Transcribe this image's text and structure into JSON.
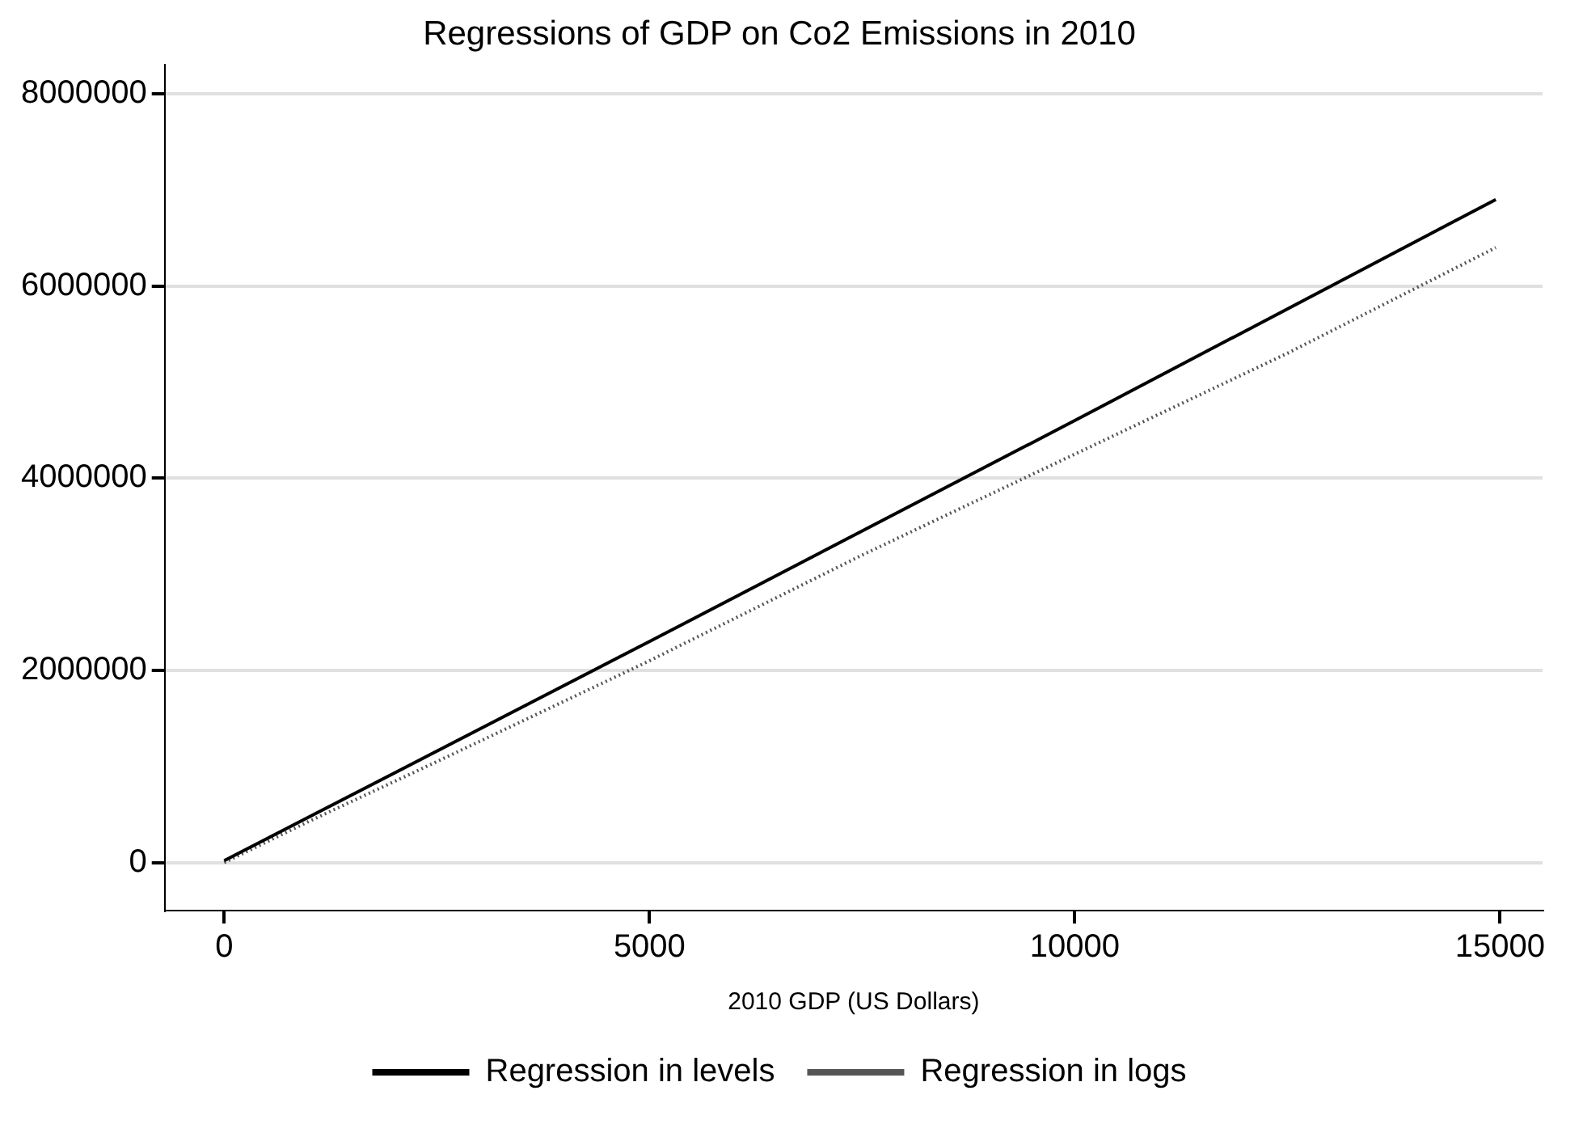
{
  "chart_data": {
    "type": "line",
    "title": "Regressions of GDP on Co2 Emissions in 2010",
    "xlabel": "2010 GDP (US Dollars)",
    "xlim": [
      -700,
      15500
    ],
    "xticks": [
      0,
      5000,
      10000,
      15000
    ],
    "ylim": [
      -500000,
      8300000
    ],
    "yticks": [
      0,
      2000000,
      4000000,
      6000000,
      8000000
    ],
    "grid": "y",
    "legend": "bottom",
    "marker": "none",
    "series": [
      {
        "name": "Regression in levels",
        "color": "#000000",
        "line_style": "solid",
        "x": [
          0,
          5000,
          10000,
          14950
        ],
        "values": [
          20000,
          2300000,
          4600000,
          6900000
        ]
      },
      {
        "name": "Regression in logs",
        "color": "#555555",
        "line_style": "dotted",
        "x": [
          0,
          1000,
          2500,
          5000,
          7500,
          10000,
          12500,
          14950
        ],
        "values": [
          0,
          430000,
          1050000,
          2100000,
          3200000,
          4250000,
          5300000,
          6400000
        ]
      }
    ]
  }
}
